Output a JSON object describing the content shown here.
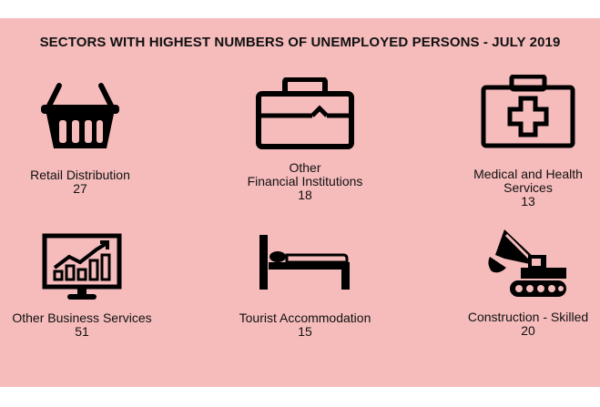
{
  "title": "SECTORS WITH HIGHEST NUMBERS OF UNEMPLOYED PERSONS - JULY 2019",
  "colors": {
    "background": "#f6bcbc",
    "icon": "#000000"
  },
  "sectors": [
    {
      "label": "Retail Distribution",
      "value": "27",
      "icon": "basket-icon"
    },
    {
      "label_line1": "Other",
      "label_line2": "Financial Institutions",
      "value": "18",
      "icon": "briefcase-icon"
    },
    {
      "label_line1": "Medical and Health",
      "label_line2": "Services",
      "value": "13",
      "icon": "medical-kit-icon"
    },
    {
      "label": "Other Business Services",
      "value": "51",
      "icon": "monitor-chart-icon"
    },
    {
      "label": "Tourist Accommodation",
      "value": "15",
      "icon": "bed-icon"
    },
    {
      "label": "Construction - Skilled",
      "value": "20",
      "icon": "excavator-icon"
    }
  ]
}
